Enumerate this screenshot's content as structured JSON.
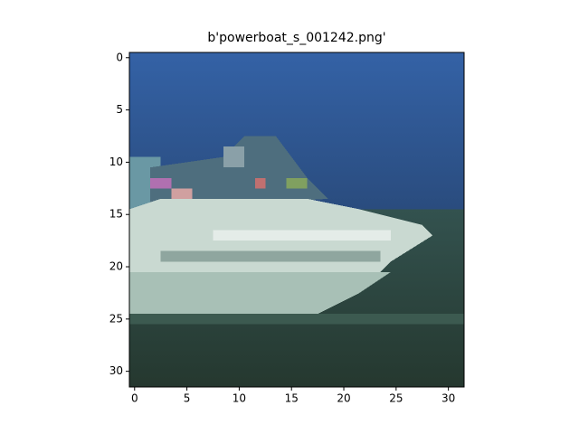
{
  "chart_data": {
    "type": "image",
    "title": "b'powerboat_s_001242.png'",
    "xlim": [
      -0.5,
      31.5
    ],
    "ylim": [
      31.5,
      -0.5
    ],
    "xticks": [
      0,
      5,
      10,
      15,
      20,
      25,
      30
    ],
    "yticks": [
      0,
      5,
      10,
      15,
      20,
      25,
      30
    ]
  }
}
